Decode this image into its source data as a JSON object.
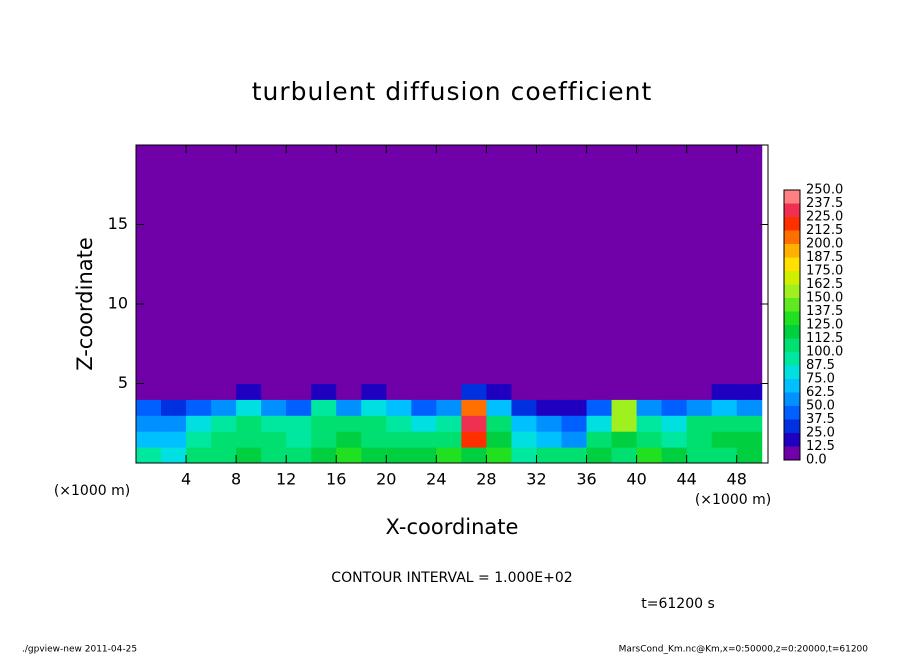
{
  "chart_data": {
    "type": "heatmap",
    "title": "turbulent diffusion coefficient",
    "x_label": "X-coordinate",
    "y_label": "Z-coordinate",
    "x_unit": "(×1000 m)",
    "y_unit": "(×1000 m)",
    "annotation": "CONTOUR INTERVAL = 1.000E+02",
    "time_label": "t=61200 s",
    "footer_left": "./gpview-new  2011-04-25",
    "footer_right": "MarsCond_Km.nc@Km,x=0:50000,z=0:20000,t=61200",
    "xlim": [
      0,
      50.5
    ],
    "ylim": [
      0,
      20
    ],
    "xticks": [
      4,
      8,
      12,
      16,
      20,
      24,
      28,
      32,
      36,
      40,
      44,
      48
    ],
    "yticks": [
      5,
      10,
      15
    ],
    "x_edges": [
      0,
      2,
      4,
      6,
      8,
      10,
      12,
      14,
      16,
      18,
      20,
      22,
      24,
      26,
      28,
      30,
      32,
      34,
      36,
      38,
      40,
      42,
      44,
      46,
      48,
      50
    ],
    "z_edges": [
      0,
      1,
      2,
      3,
      4,
      5,
      20
    ],
    "values": [
      [
        90,
        80,
        100,
        110,
        120,
        110,
        100,
        120,
        130,
        120,
        115,
        120,
        125,
        120,
        130,
        90,
        110,
        100,
        120,
        110,
        130,
        120,
        110,
        100,
        120
      ],
      [
        70,
        65,
        90,
        100,
        110,
        100,
        95,
        110,
        120,
        110,
        105,
        110,
        100,
        215,
        120,
        80,
        70,
        60,
        110,
        120,
        100,
        90,
        110,
        120,
        115
      ],
      [
        60,
        55,
        80,
        90,
        100,
        95,
        90,
        100,
        110,
        100,
        95,
        80,
        90,
        225,
        110,
        70,
        50,
        45,
        80,
        150,
        90,
        80,
        100,
        110,
        105
      ],
      [
        40,
        30,
        45,
        50,
        80,
        60,
        40,
        90,
        60,
        80,
        70,
        40,
        50,
        200,
        70,
        30,
        15,
        20,
        40,
        160,
        60,
        40,
        60,
        70,
        60
      ],
      [
        5,
        5,
        10,
        5,
        20,
        5,
        5,
        20,
        10,
        20,
        5,
        5,
        5,
        30,
        15,
        5,
        0,
        0,
        5,
        5,
        5,
        5,
        10,
        20,
        15
      ],
      [
        0,
        0,
        0,
        0,
        0,
        0,
        0,
        0,
        0,
        0,
        0,
        0,
        0,
        0,
        0,
        0,
        0,
        0,
        0,
        0,
        0,
        0,
        0,
        0,
        0
      ]
    ],
    "levels": [
      {
        "value": 0,
        "label": "0.0"
      },
      {
        "value": 12.5,
        "label": "12.5"
      },
      {
        "value": 25,
        "label": "25.0"
      },
      {
        "value": 37.5,
        "label": "37.5"
      },
      {
        "value": 50,
        "label": "50.0"
      },
      {
        "value": 62.5,
        "label": "62.5"
      },
      {
        "value": 75,
        "label": "75.0"
      },
      {
        "value": 87.5,
        "label": "87.5"
      },
      {
        "value": 100,
        "label": "100.0"
      },
      {
        "value": 112.5,
        "label": "112.5"
      },
      {
        "value": 125,
        "label": "125.0"
      },
      {
        "value": 137.5,
        "label": "137.5"
      },
      {
        "value": 150,
        "label": "150.0"
      },
      {
        "value": 162.5,
        "label": "162.5"
      },
      {
        "value": 175,
        "label": "175.0"
      },
      {
        "value": 187.5,
        "label": "187.5"
      },
      {
        "value": 200,
        "label": "200.0"
      },
      {
        "value": 212.5,
        "label": "212.5"
      },
      {
        "value": 225,
        "label": "225.0"
      },
      {
        "value": 237.5,
        "label": "237.5"
      },
      {
        "value": 250,
        "label": "250.0"
      }
    ],
    "level_colors": [
      "#7000a8",
      "#2000c0",
      "#0030e0",
      "#0060ff",
      "#0090ff",
      "#00c0ff",
      "#00e0e0",
      "#00e8a0",
      "#00e070",
      "#00d040",
      "#20e020",
      "#60e820",
      "#a0f020",
      "#d0f000",
      "#ffe000",
      "#ffb000",
      "#ff7000",
      "#ff3000",
      "#f03050",
      "#ff8080"
    ]
  }
}
